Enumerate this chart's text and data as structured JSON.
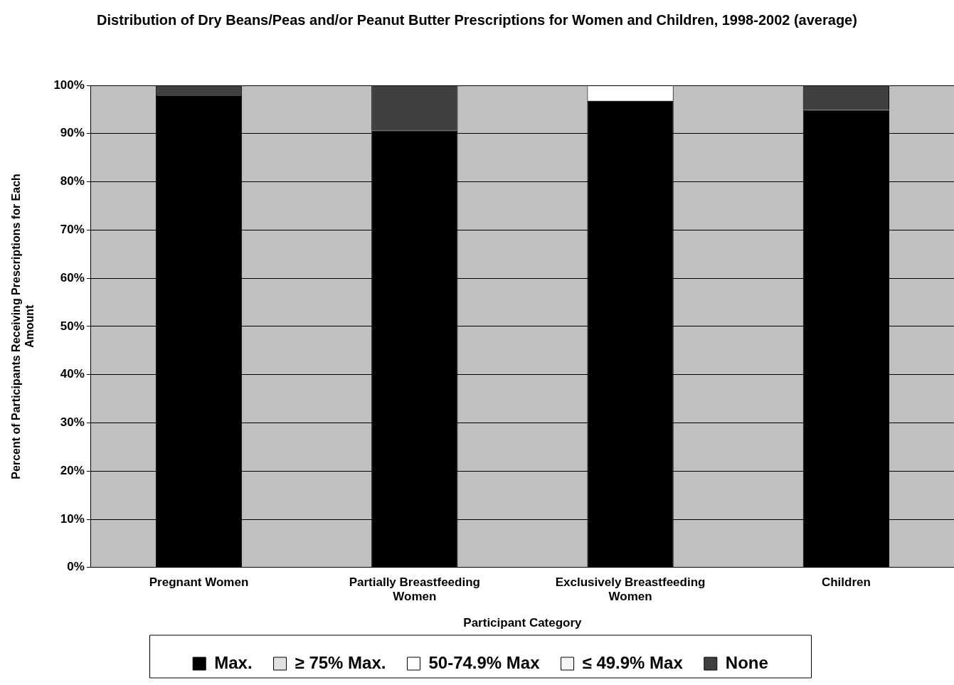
{
  "chart_data": {
    "type": "bar",
    "stacked": true,
    "title": "Distribution of Dry Beans/Peas and/or Peanut Butter Prescriptions for Women and Children, 1998-2002 (average)",
    "xlabel": "Participant Category",
    "ylabel": "Percent of Participants Receiving Prescriptions for Each Amount",
    "categories": [
      "Pregnant Women",
      "Partially Breastfeeding Women",
      "Exclusively Breastfeeding Women",
      "Children"
    ],
    "series": [
      {
        "name": "Max.",
        "color": "#000000",
        "values": [
          97.8,
          90.6,
          96.8,
          94.9
        ]
      },
      {
        "name": "≥ 75% Max.",
        "color": "#e0e0e0",
        "values": [
          0,
          0,
          0,
          0
        ]
      },
      {
        "name": "50-74.9% Max",
        "color": "#ffffff",
        "values": [
          0,
          0,
          3.2,
          0
        ]
      },
      {
        "name": "≤ 49.9% Max",
        "color": "#f5f5f5",
        "values": [
          0,
          0,
          0,
          0
        ]
      },
      {
        "name": "None",
        "color": "#404040",
        "values": [
          2.2,
          9.4,
          0,
          5.1
        ]
      }
    ],
    "ylim": [
      0,
      100
    ],
    "yticks": [
      {
        "value": 0,
        "label": "0%"
      },
      {
        "value": 10,
        "label": "10%"
      },
      {
        "value": 20,
        "label": "20%"
      },
      {
        "value": 30,
        "label": "30%"
      },
      {
        "value": 40,
        "label": "40%"
      },
      {
        "value": 50,
        "label": "50%"
      },
      {
        "value": 60,
        "label": "60%"
      },
      {
        "value": 70,
        "label": "70%"
      },
      {
        "value": 80,
        "label": "80%"
      },
      {
        "value": 90,
        "label": "90%"
      },
      {
        "value": 100,
        "label": "100%"
      }
    ],
    "grid": "y",
    "legend": "bottom"
  }
}
